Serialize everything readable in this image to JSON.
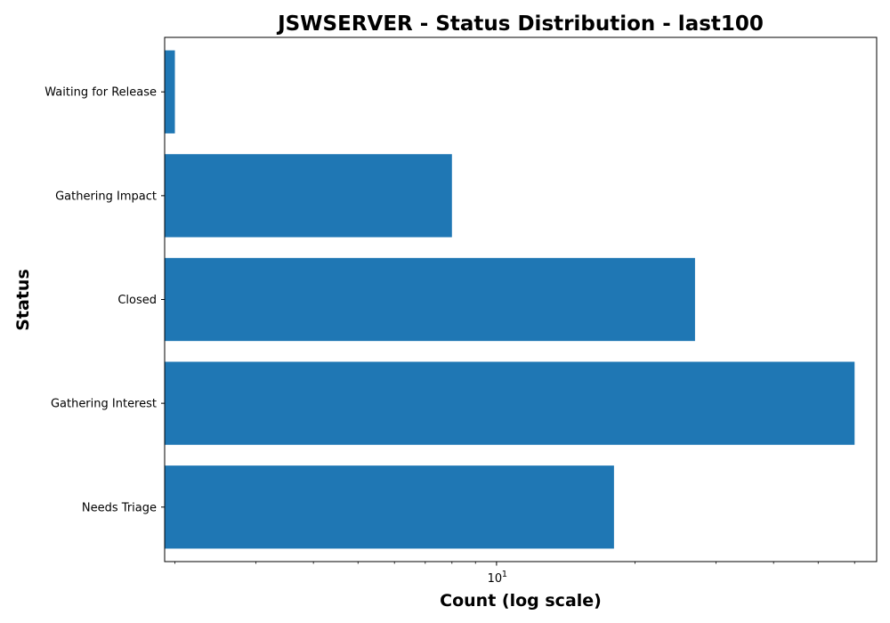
{
  "chart_data": {
    "type": "bar",
    "orientation": "horizontal",
    "title": "JSWSERVER - Status Distribution - last100",
    "xlabel": "Count (log scale)",
    "ylabel": "Status",
    "xscale": "log",
    "xlim": [
      1.9,
      67
    ],
    "categories": [
      "Needs Triage",
      "Gathering Interest",
      "Closed",
      "Gathering Impact",
      "Waiting for Release"
    ],
    "values": [
      18,
      60,
      27,
      8,
      2
    ],
    "major_ticks": [
      {
        "value": 10,
        "base": "10",
        "exponent": "1"
      }
    ],
    "minor_ticks": [
      2,
      3,
      4,
      5,
      6,
      7,
      8,
      9,
      20,
      30,
      40,
      50,
      60
    ],
    "bar_color": "#1f77b4",
    "grid": false,
    "legend": "none"
  }
}
